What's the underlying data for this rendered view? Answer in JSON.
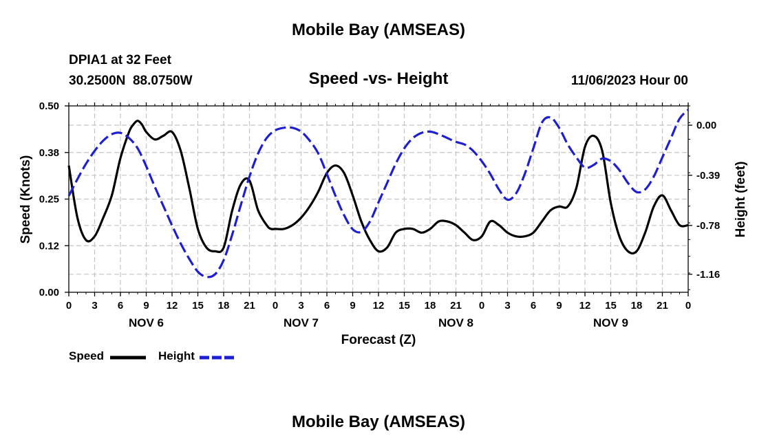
{
  "page": {
    "title": "Mobile Bay (AMSEAS)",
    "bottom_title": "Mobile Bay (AMSEAS)",
    "station": "DPIA1 at 32 Feet",
    "coords": "30.2500N  88.0750W",
    "datetime": "11/06/2023 Hour 00"
  },
  "chart_data": {
    "type": "line",
    "title": "Speed -vs- Height",
    "xlabel": "Forecast (Z)",
    "ylabel": "Speed (Knots)",
    "y2label": "Height (feet)",
    "xlim": [
      0,
      72
    ],
    "ylim": [
      0,
      0.5
    ],
    "y2lim": [
      -1.3,
      0.15
    ],
    "yticks": [
      0,
      0.125,
      0.25,
      0.375,
      0.5
    ],
    "ytick_labels": [
      "0.00",
      "0.12",
      "0.25",
      "0.38",
      "0.50"
    ],
    "y2ticks": [
      0,
      -0.39,
      -0.78,
      -1.16
    ],
    "y2tick_labels": [
      "0.00",
      "-0.39",
      "-0.78",
      "-1.16"
    ],
    "xticks": [
      0,
      3,
      6,
      9,
      12,
      15,
      18,
      21,
      24,
      27,
      30,
      33,
      36,
      39,
      42,
      45,
      48,
      51,
      54,
      57,
      60,
      63,
      66,
      69,
      72
    ],
    "xtick_labels": [
      "0",
      "3",
      "6",
      "9",
      "12",
      "15",
      "18",
      "21",
      "0",
      "3",
      "6",
      "9",
      "12",
      "15",
      "18",
      "21",
      "0",
      "3",
      "6",
      "9",
      "12",
      "15",
      "18",
      "21",
      "0"
    ],
    "day_labels": [
      {
        "hour": 9,
        "label": "NOV 6"
      },
      {
        "hour": 27,
        "label": "NOV 7"
      },
      {
        "hour": 45,
        "label": "NOV 8"
      },
      {
        "hour": 63,
        "label": "NOV 9"
      }
    ],
    "grid": true,
    "series": [
      {
        "name": "Speed",
        "axis": "left",
        "color": "#000000",
        "dash": "solid",
        "x": [
          0,
          1,
          2,
          3,
          4,
          5,
          6,
          7,
          7.5,
          8,
          8.5,
          9,
          10,
          11,
          12,
          13,
          14,
          15,
          16,
          17,
          18,
          19,
          20,
          21,
          22,
          23,
          23.5,
          24,
          25,
          26,
          27,
          28,
          29,
          30,
          31,
          32,
          33,
          34,
          35,
          36,
          37,
          38,
          39,
          40,
          41,
          42,
          43,
          44,
          45,
          46,
          47,
          48,
          49,
          50,
          51,
          52,
          53,
          54,
          55,
          56,
          57,
          58,
          59,
          60,
          61,
          62,
          63,
          64,
          65,
          66,
          67,
          68,
          69,
          70,
          71,
          72
        ],
        "values": [
          0.34,
          0.2,
          0.14,
          0.15,
          0.2,
          0.26,
          0.36,
          0.43,
          0.45,
          0.46,
          0.45,
          0.43,
          0.41,
          0.42,
          0.43,
          0.38,
          0.28,
          0.17,
          0.12,
          0.11,
          0.12,
          0.22,
          0.29,
          0.3,
          0.22,
          0.18,
          0.17,
          0.17,
          0.17,
          0.18,
          0.2,
          0.23,
          0.27,
          0.32,
          0.34,
          0.32,
          0.26,
          0.19,
          0.14,
          0.11,
          0.12,
          0.16,
          0.17,
          0.17,
          0.16,
          0.17,
          0.19,
          0.19,
          0.18,
          0.16,
          0.14,
          0.15,
          0.19,
          0.18,
          0.16,
          0.15,
          0.15,
          0.16,
          0.19,
          0.22,
          0.23,
          0.23,
          0.28,
          0.39,
          0.42,
          0.38,
          0.24,
          0.15,
          0.11,
          0.11,
          0.16,
          0.23,
          0.26,
          0.22,
          0.18,
          0.18
        ]
      },
      {
        "name": "Height",
        "axis": "right",
        "color": "#1e1ed2",
        "dash": "dashed",
        "x": [
          0,
          1,
          2,
          3,
          4,
          5,
          6,
          7,
          8,
          9,
          10,
          11,
          12,
          13,
          14,
          15,
          16,
          17,
          18,
          19,
          20,
          21,
          22,
          23,
          24,
          25,
          26,
          27,
          28,
          29,
          30,
          31,
          32,
          33,
          34,
          35,
          36,
          37,
          38,
          39,
          40,
          41,
          42,
          43,
          44,
          45,
          46,
          47,
          48,
          49,
          50,
          51,
          52,
          53,
          54,
          55,
          56,
          57,
          58,
          59,
          60,
          61,
          62,
          63,
          64,
          65,
          66,
          67,
          68,
          69,
          70,
          71,
          72
        ],
        "values": [
          -0.55,
          -0.42,
          -0.3,
          -0.2,
          -0.12,
          -0.07,
          -0.06,
          -0.1,
          -0.18,
          -0.32,
          -0.48,
          -0.63,
          -0.78,
          -0.92,
          -1.04,
          -1.14,
          -1.18,
          -1.16,
          -1.05,
          -0.85,
          -0.62,
          -0.4,
          -0.22,
          -0.1,
          -0.04,
          -0.02,
          -0.02,
          -0.05,
          -0.12,
          -0.22,
          -0.38,
          -0.55,
          -0.7,
          -0.81,
          -0.83,
          -0.75,
          -0.6,
          -0.45,
          -0.3,
          -0.18,
          -0.1,
          -0.06,
          -0.05,
          -0.07,
          -0.1,
          -0.13,
          -0.15,
          -0.2,
          -0.28,
          -0.38,
          -0.5,
          -0.58,
          -0.53,
          -0.38,
          -0.18,
          0.02,
          0.06,
          -0.02,
          -0.15,
          -0.25,
          -0.33,
          -0.31,
          -0.26,
          -0.28,
          -0.35,
          -0.45,
          -0.52,
          -0.5,
          -0.4,
          -0.25,
          -0.1,
          0.05,
          0.12
        ]
      }
    ],
    "legend": {
      "placement": "bottom-left",
      "items": [
        {
          "label": "Speed",
          "color": "#000000",
          "dash": "solid"
        },
        {
          "label": "Height",
          "color": "#1e1ed2",
          "dash": "dashed"
        }
      ]
    }
  }
}
